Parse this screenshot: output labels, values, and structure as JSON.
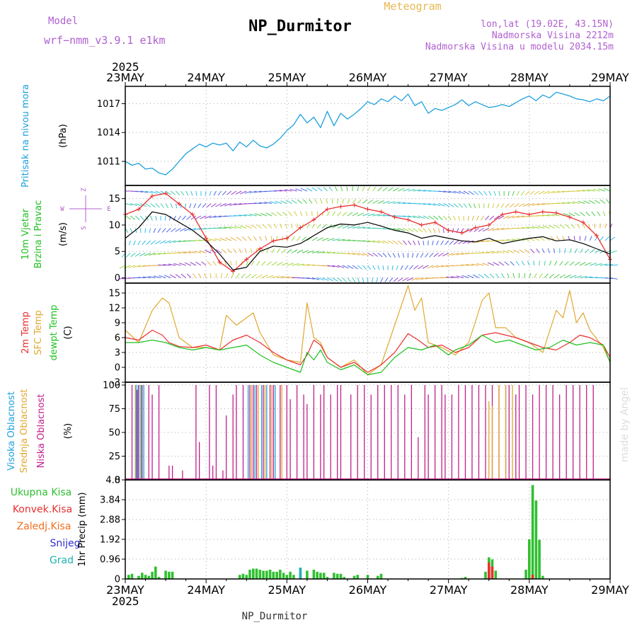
{
  "header": {
    "model_label": "Model",
    "model_name": "wrf−nmm_v3.9.1  e1km",
    "station": "NP_Durmitor",
    "product": "Meteogram",
    "coords": "lon,lat (19.02E, 43.15N)",
    "elevation": "Nadmorska Visina 2212m",
    "model_elevation": "Nadmorska Visina u modelu 2034.15m",
    "signature": "made by Angel",
    "footer_station": "NP_Durmitor",
    "year_top": "2025",
    "year_bottom": "2025"
  },
  "colors": {
    "pressure": "#1ea0dc",
    "wind_speed": "#000000",
    "wind_gust": "#e83030",
    "t2m": "#e83030",
    "sfc": "#e0a830",
    "dewpt": "#20c020",
    "high_cloud": "#1ea0dc",
    "mid_cloud": "#e0a830",
    "low_cloud": "#c0208a",
    "total_precip": "#30c030",
    "conv_precip": "#e83030",
    "frozen_precip": "#f07020",
    "snow": "#3030d0",
    "hail": "#20b0b0",
    "model_text": "#b060d0",
    "product_text": "#e8b850"
  },
  "chart_data": [
    {
      "id": "pressure",
      "type": "line",
      "title": "Meteogram",
      "ylabel_lines": [
        "Pritisak na nivou mora",
        "(hPa)"
      ],
      "x_ticks": [
        "23MAY",
        "24MAY",
        "25MAY",
        "26MAY",
        "27MAY",
        "28MAY",
        "29MAY"
      ],
      "x_range_hours": [
        0,
        144
      ],
      "ylim": [
        1008.5,
        1018.8
      ],
      "yticks": [
        1011,
        1014,
        1017
      ],
      "grid": true,
      "series": [
        {
          "x": [
            0,
            2,
            4,
            6,
            8,
            10,
            12,
            14,
            16,
            18,
            20,
            22,
            24,
            26,
            28,
            30,
            32,
            34,
            36,
            38,
            40,
            42,
            44,
            46,
            48,
            50,
            52,
            54,
            56,
            58,
            60,
            62,
            64,
            66,
            68,
            70,
            72,
            74,
            76,
            78,
            80,
            82,
            84,
            86,
            88,
            90,
            92,
            94,
            96,
            98,
            100,
            102,
            104,
            106,
            108,
            110,
            112,
            114,
            116,
            118,
            120,
            122,
            124,
            126,
            128,
            130,
            132,
            134,
            136,
            138,
            140,
            142,
            144
          ],
          "values": [
            1011.0,
            1010.6,
            1010.8,
            1010.2,
            1010.3,
            1009.8,
            1009.6,
            1010.2,
            1011.0,
            1011.8,
            1012.3,
            1012.8,
            1012.5,
            1012.9,
            1012.7,
            1012.9,
            1012.1,
            1013.0,
            1012.5,
            1013.2,
            1012.6,
            1012.4,
            1012.8,
            1013.4,
            1014.2,
            1014.8,
            1015.9,
            1015.0,
            1015.6,
            1014.5,
            1016.2,
            1014.7,
            1016.0,
            1015.4,
            1015.9,
            1016.5,
            1017.2,
            1016.9,
            1017.5,
            1017.2,
            1017.8,
            1017.3,
            1018.0,
            1016.8,
            1017.2,
            1016.0,
            1016.5,
            1016.3,
            1016.6,
            1016.9,
            1017.4,
            1016.8,
            1017.2,
            1016.9,
            1016.6,
            1016.7,
            1016.9,
            1016.7,
            1017.1,
            1017.5,
            1017.8,
            1017.3,
            1017.9,
            1017.6,
            1018.2,
            1018.0,
            1017.8,
            1017.5,
            1017.4,
            1017.2,
            1017.5,
            1017.3,
            1017.8
          ]
        }
      ]
    },
    {
      "id": "wind",
      "type": "line",
      "ylabel_lines": [
        "10m Vjetar",
        "Brzina i Pravac",
        "(m/s)"
      ],
      "compass": [
        "Z",
        "E",
        "W",
        "S"
      ],
      "ylim": [
        -1,
        17.5
      ],
      "yticks": [
        0,
        5,
        10,
        15
      ],
      "grid": true,
      "series": [
        {
          "name": "speed",
          "x": [
            0,
            4,
            8,
            12,
            16,
            20,
            24,
            28,
            32,
            36,
            40,
            44,
            48,
            52,
            56,
            60,
            64,
            68,
            72,
            76,
            80,
            84,
            88,
            92,
            96,
            100,
            104,
            108,
            112,
            116,
            120,
            124,
            128,
            132,
            136,
            140,
            144
          ],
          "values": [
            7.5,
            9.5,
            12.5,
            12.0,
            10.5,
            9.0,
            7.0,
            4.5,
            1.5,
            2.0,
            5.0,
            6.0,
            5.8,
            6.5,
            8.0,
            9.5,
            10.2,
            10.0,
            10.5,
            9.8,
            9.0,
            8.5,
            7.5,
            8.0,
            7.5,
            7.0,
            6.8,
            7.5,
            6.5,
            7.0,
            7.5,
            7.8,
            7.0,
            7.2,
            6.5,
            5.5,
            4.5
          ]
        },
        {
          "name": "gust",
          "x": [
            0,
            4,
            8,
            12,
            16,
            20,
            24,
            28,
            32,
            36,
            40,
            44,
            48,
            52,
            56,
            60,
            64,
            68,
            72,
            76,
            80,
            84,
            88,
            92,
            96,
            100,
            104,
            108,
            112,
            116,
            120,
            124,
            128,
            132,
            136,
            140,
            144
          ],
          "values": [
            12.0,
            13.0,
            15.5,
            16.0,
            14.0,
            12.0,
            7.5,
            3.0,
            1.2,
            3.5,
            5.5,
            7.0,
            7.5,
            9.5,
            11.0,
            13.0,
            13.5,
            13.8,
            13.0,
            12.5,
            11.5,
            11.0,
            10.0,
            10.5,
            9.0,
            8.5,
            9.5,
            10.0,
            12.0,
            12.5,
            12.0,
            12.5,
            12.3,
            11.5,
            10.5,
            8.0,
            3.5
          ]
        }
      ]
    },
    {
      "id": "temperature",
      "type": "line",
      "ylabel_lines": [
        "2m Temp",
        "SFC Temp",
        "dewpt Temp",
        "(C)"
      ],
      "ylim": [
        -3,
        17
      ],
      "yticks": [
        -3,
        0,
        3,
        6,
        9,
        12,
        15
      ],
      "grid": true,
      "series": [
        {
          "name": "2m Temp",
          "x": [
            0,
            4,
            8,
            11,
            13,
            16,
            20,
            24,
            28,
            32,
            36,
            40,
            44,
            48,
            52,
            54,
            56,
            58,
            60,
            64,
            68,
            72,
            76,
            80,
            84,
            87,
            90,
            94,
            98,
            102,
            106,
            110,
            113,
            116,
            120,
            124,
            128,
            132,
            135,
            138,
            142,
            144
          ],
          "values": [
            6.0,
            5.5,
            7.5,
            6.5,
            5.0,
            4.2,
            4.0,
            4.5,
            3.5,
            5.5,
            6.5,
            5.0,
            3.0,
            1.5,
            0.5,
            2.5,
            5.5,
            4.5,
            2.0,
            0.0,
            1.0,
            -1.0,
            0.5,
            3.0,
            6.8,
            5.5,
            4.0,
            4.5,
            3.0,
            4.0,
            6.5,
            7.0,
            6.5,
            6.0,
            5.0,
            4.0,
            3.5,
            5.0,
            6.5,
            6.0,
            4.5,
            2.0
          ]
        },
        {
          "name": "SFC Temp",
          "x": [
            0,
            4,
            8,
            11,
            13,
            16,
            20,
            24,
            28,
            30,
            33,
            36,
            38,
            40,
            44,
            48,
            52,
            54,
            56,
            58,
            60,
            64,
            68,
            72,
            76,
            80,
            84,
            86,
            88,
            90,
            94,
            98,
            102,
            106,
            108,
            110,
            113,
            116,
            120,
            124,
            128,
            130,
            132,
            134,
            136,
            138,
            142,
            144
          ],
          "values": [
            7.5,
            5.0,
            11.5,
            14.0,
            13.0,
            6.0,
            4.0,
            4.0,
            3.5,
            10.5,
            8.5,
            10.0,
            11.0,
            7.0,
            2.5,
            1.5,
            1.0,
            13.0,
            6.0,
            5.0,
            2.0,
            0.0,
            1.5,
            -1.5,
            0.5,
            8.5,
            16.5,
            11.5,
            14.0,
            5.0,
            4.0,
            2.5,
            5.0,
            13.5,
            15.0,
            8.0,
            8.0,
            6.0,
            5.0,
            3.0,
            11.5,
            10.0,
            15.5,
            9.0,
            11.0,
            7.5,
            4.0,
            1.0
          ]
        },
        {
          "name": "dewpt Temp",
          "x": [
            0,
            4,
            8,
            12,
            16,
            20,
            24,
            28,
            32,
            36,
            40,
            44,
            48,
            52,
            54,
            56,
            58,
            60,
            64,
            68,
            72,
            76,
            80,
            84,
            88,
            92,
            96,
            98,
            102,
            106,
            110,
            114,
            118,
            122,
            126,
            130,
            134,
            138,
            142,
            144
          ],
          "values": [
            5.0,
            5.0,
            5.5,
            5.0,
            4.0,
            3.5,
            4.0,
            3.5,
            4.0,
            4.5,
            2.5,
            1.0,
            0.0,
            -1.0,
            3.0,
            1.5,
            3.5,
            1.0,
            -0.5,
            0.5,
            -1.5,
            -1.0,
            2.0,
            4.0,
            3.5,
            4.5,
            2.5,
            3.5,
            4.5,
            6.5,
            5.0,
            5.5,
            4.5,
            3.5,
            4.0,
            5.5,
            4.5,
            5.0,
            4.5,
            1.0
          ]
        }
      ]
    },
    {
      "id": "clouds",
      "type": "bar",
      "ylabel_lines": [
        "Visoka Oblacnost",
        "Srednja Oblacnost",
        "Niska Oblacnost",
        "(%)"
      ],
      "ylim": [
        0,
        103
      ],
      "yticks": [
        0,
        25,
        50,
        75,
        100
      ],
      "grid": true,
      "series": [
        {
          "name": "Niska Oblacnost",
          "x": [
            2,
            3.5,
            4,
            5,
            7,
            8,
            10,
            13,
            14,
            17,
            21,
            22,
            25,
            26,
            27,
            29,
            30,
            32,
            33,
            35,
            37,
            38,
            39,
            41,
            43,
            44,
            46,
            48,
            49,
            51,
            53,
            54,
            56,
            58,
            59,
            61,
            63,
            64,
            67,
            69,
            71,
            73,
            75,
            77,
            79,
            81,
            83,
            85,
            87,
            89,
            90,
            92,
            94,
            95,
            97,
            99,
            101,
            103,
            105,
            107,
            109,
            111,
            113,
            114,
            116,
            117,
            119,
            121,
            123,
            125,
            127,
            129,
            131,
            133,
            135,
            137,
            139
          ],
          "values": [
            100,
            95,
            100,
            100,
            100,
            90,
            100,
            15,
            15,
            10,
            100,
            40,
            100,
            15,
            100,
            10,
            68,
            90,
            100,
            100,
            100,
            100,
            100,
            100,
            100,
            100,
            100,
            100,
            85,
            100,
            90,
            80,
            100,
            90,
            100,
            90,
            100,
            100,
            90,
            100,
            100,
            90,
            100,
            100,
            100,
            100,
            90,
            100,
            45,
            100,
            90,
            100,
            100,
            90,
            90,
            100,
            100,
            100,
            100,
            100,
            100,
            100,
            100,
            100,
            90,
            100,
            100,
            90,
            100,
            100,
            100,
            90,
            100,
            100,
            100,
            100,
            100
          ]
        },
        {
          "name": "Srednja Oblacnost",
          "x": [
            3,
            4.5,
            37.5,
            39.5,
            41.5,
            43.5,
            46.5,
            108,
            109,
            111,
            113,
            115
          ],
          "values": [
            100,
            100,
            100,
            100,
            100,
            100,
            100,
            83,
            78,
            100,
            100,
            100
          ]
        },
        {
          "name": "Visoka Oblacnost",
          "x": [
            3.2,
            3.8,
            4.8,
            5.5,
            36.5,
            38.5,
            40.5,
            42,
            44.5
          ],
          "values": [
            100,
            100,
            100,
            100,
            100,
            100,
            100,
            100,
            100
          ]
        }
      ]
    },
    {
      "id": "precip",
      "type": "bar",
      "ylabel_lines": [
        "1hr Precip (mm)"
      ],
      "legend": [
        "Ukupna Kisa",
        "Konvek.Kisa",
        "Zaledj.Kisa",
        "Snijeg",
        "Grad"
      ],
      "ylim": [
        0,
        4.8
      ],
      "yticks": [
        0,
        0.96,
        1.92,
        2.88,
        3.84,
        4.8
      ],
      "grid": true,
      "series": [
        {
          "name": "Ukupna Kisa",
          "x": [
            1,
            2,
            4,
            5,
            6,
            7,
            8,
            9,
            10,
            12,
            13,
            14,
            34,
            35,
            36,
            37,
            38,
            39,
            40,
            41,
            42,
            43,
            44,
            45,
            46,
            47,
            48,
            49,
            50,
            52,
            54,
            56,
            57,
            58,
            59,
            60,
            62,
            63,
            64,
            65,
            68,
            69,
            72,
            75,
            76,
            100,
            101,
            107,
            108,
            109,
            110,
            119,
            120,
            121,
            122,
            123,
            124
          ],
          "values": [
            0.2,
            0.25,
            0.15,
            0.3,
            0.2,
            0.15,
            0.35,
            0.6,
            0.1,
            0.4,
            0.35,
            0.35,
            0.2,
            0.25,
            0.2,
            0.45,
            0.5,
            0.5,
            0.45,
            0.4,
            0.4,
            0.45,
            0.35,
            0.35,
            0.45,
            0.3,
            0.2,
            0.35,
            0.2,
            0.3,
            0.4,
            0.45,
            0.35,
            0.3,
            0.3,
            0.1,
            0.3,
            0.25,
            0.25,
            0.1,
            0.15,
            0.2,
            0.2,
            0.15,
            0.25,
            0.05,
            0.1,
            0.35,
            1.05,
            0.95,
            0.4,
            0.45,
            1.92,
            4.55,
            3.8,
            1.9,
            0.15
          ]
        },
        {
          "name": "Konvek.Kisa",
          "x": [
            108,
            109,
            121
          ],
          "values": [
            0.8,
            0.6,
            0.2
          ]
        },
        {
          "name": "Zaledj.Kisa",
          "x": [],
          "values": []
        },
        {
          "name": "Snijeg",
          "x": [],
          "values": []
        },
        {
          "name": "Grad",
          "x": [
            52
          ],
          "values": [
            0.55
          ]
        }
      ]
    }
  ]
}
